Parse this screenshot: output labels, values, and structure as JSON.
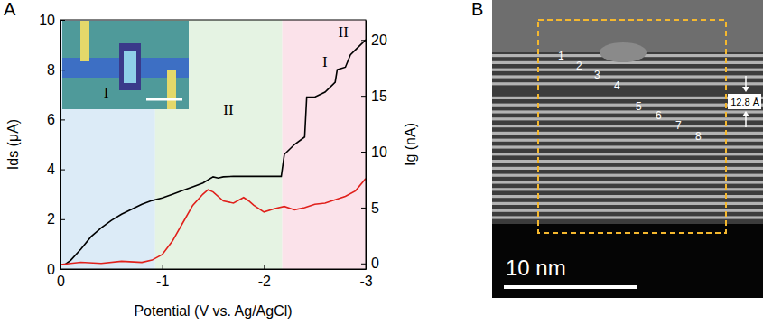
{
  "chart_data": {
    "type": "line",
    "panel_label": "A",
    "x_label": "Potential (V vs. Ag/AgCl)",
    "y_label": "Ids (μA)",
    "y2_label": "Ig (nA)",
    "xlim": [
      0,
      -3
    ],
    "xticks": [
      0,
      -1,
      -2,
      -3
    ],
    "ylim": [
      0,
      10
    ],
    "yticks": [
      0,
      2,
      4,
      6,
      8,
      10
    ],
    "y2lim": [
      -0.5,
      21.8
    ],
    "y2ticks": [
      0,
      5,
      10,
      15,
      20
    ],
    "regions": [
      {
        "from": 0,
        "to": -0.93,
        "color": "#dcebf7"
      },
      {
        "from": -0.93,
        "to": -2.18,
        "color": "#e5f3e3"
      },
      {
        "from": -2.18,
        "to": -3,
        "color": "#fbe2ea"
      }
    ],
    "annotations": [
      {
        "text": "I",
        "x": -0.45,
        "y": 6.9
      },
      {
        "text": "II",
        "x": -1.65,
        "y": 6.2
      },
      {
        "text": "II",
        "x": -2.78,
        "y": 9.3
      },
      {
        "text": "I",
        "x": -2.6,
        "y": 8.1
      }
    ],
    "series": [
      {
        "name": "Ids",
        "color": "#000000",
        "x": [
          -0.05,
          -0.1,
          -0.2,
          -0.3,
          -0.4,
          -0.5,
          -0.6,
          -0.7,
          -0.8,
          -0.9,
          -1.0,
          -1.1,
          -1.2,
          -1.3,
          -1.4,
          -1.5,
          -1.55,
          -1.6,
          -1.7,
          -1.8,
          -1.9,
          -2.0,
          -2.1,
          -2.17,
          -2.2,
          -2.3,
          -2.4,
          -2.42,
          -2.5,
          -2.6,
          -2.7,
          -2.72,
          -2.8,
          -2.85,
          -2.9,
          -3.0
        ],
        "values": [
          0.2,
          0.35,
          0.8,
          1.3,
          1.65,
          1.95,
          2.2,
          2.4,
          2.6,
          2.75,
          2.85,
          3.0,
          3.15,
          3.3,
          3.45,
          3.7,
          3.65,
          3.7,
          3.72,
          3.72,
          3.72,
          3.72,
          3.72,
          3.72,
          4.6,
          5.0,
          5.3,
          6.9,
          6.9,
          7.1,
          7.5,
          8.0,
          8.1,
          8.6,
          8.8,
          9.2
        ]
      },
      {
        "name": "Ig",
        "color": "#e0201b",
        "axis": "y2",
        "x": [
          0,
          -0.2,
          -0.4,
          -0.6,
          -0.8,
          -0.9,
          -1.0,
          -1.1,
          -1.2,
          -1.3,
          -1.4,
          -1.45,
          -1.5,
          -1.6,
          -1.7,
          -1.8,
          -1.85,
          -1.9,
          -2.0,
          -2.1,
          -2.2,
          -2.3,
          -2.4,
          -2.5,
          -2.6,
          -2.7,
          -2.8,
          -2.9,
          -3.0
        ],
        "values": [
          -0.1,
          0.1,
          0.0,
          0.2,
          0.1,
          0.3,
          0.8,
          2.0,
          3.6,
          5.2,
          6.2,
          6.6,
          6.4,
          5.6,
          5.4,
          5.9,
          5.6,
          5.2,
          4.6,
          4.9,
          5.1,
          4.8,
          5.0,
          5.3,
          5.4,
          5.7,
          6.0,
          6.5,
          7.6
        ]
      }
    ]
  },
  "micrograph": {
    "panel_label": "B",
    "layer_labels": [
      "1",
      "2",
      "3",
      "4",
      "5",
      "6",
      "7",
      "8"
    ],
    "spacing_label": "12.8 Å",
    "scale_bar_label": "10 nm"
  }
}
